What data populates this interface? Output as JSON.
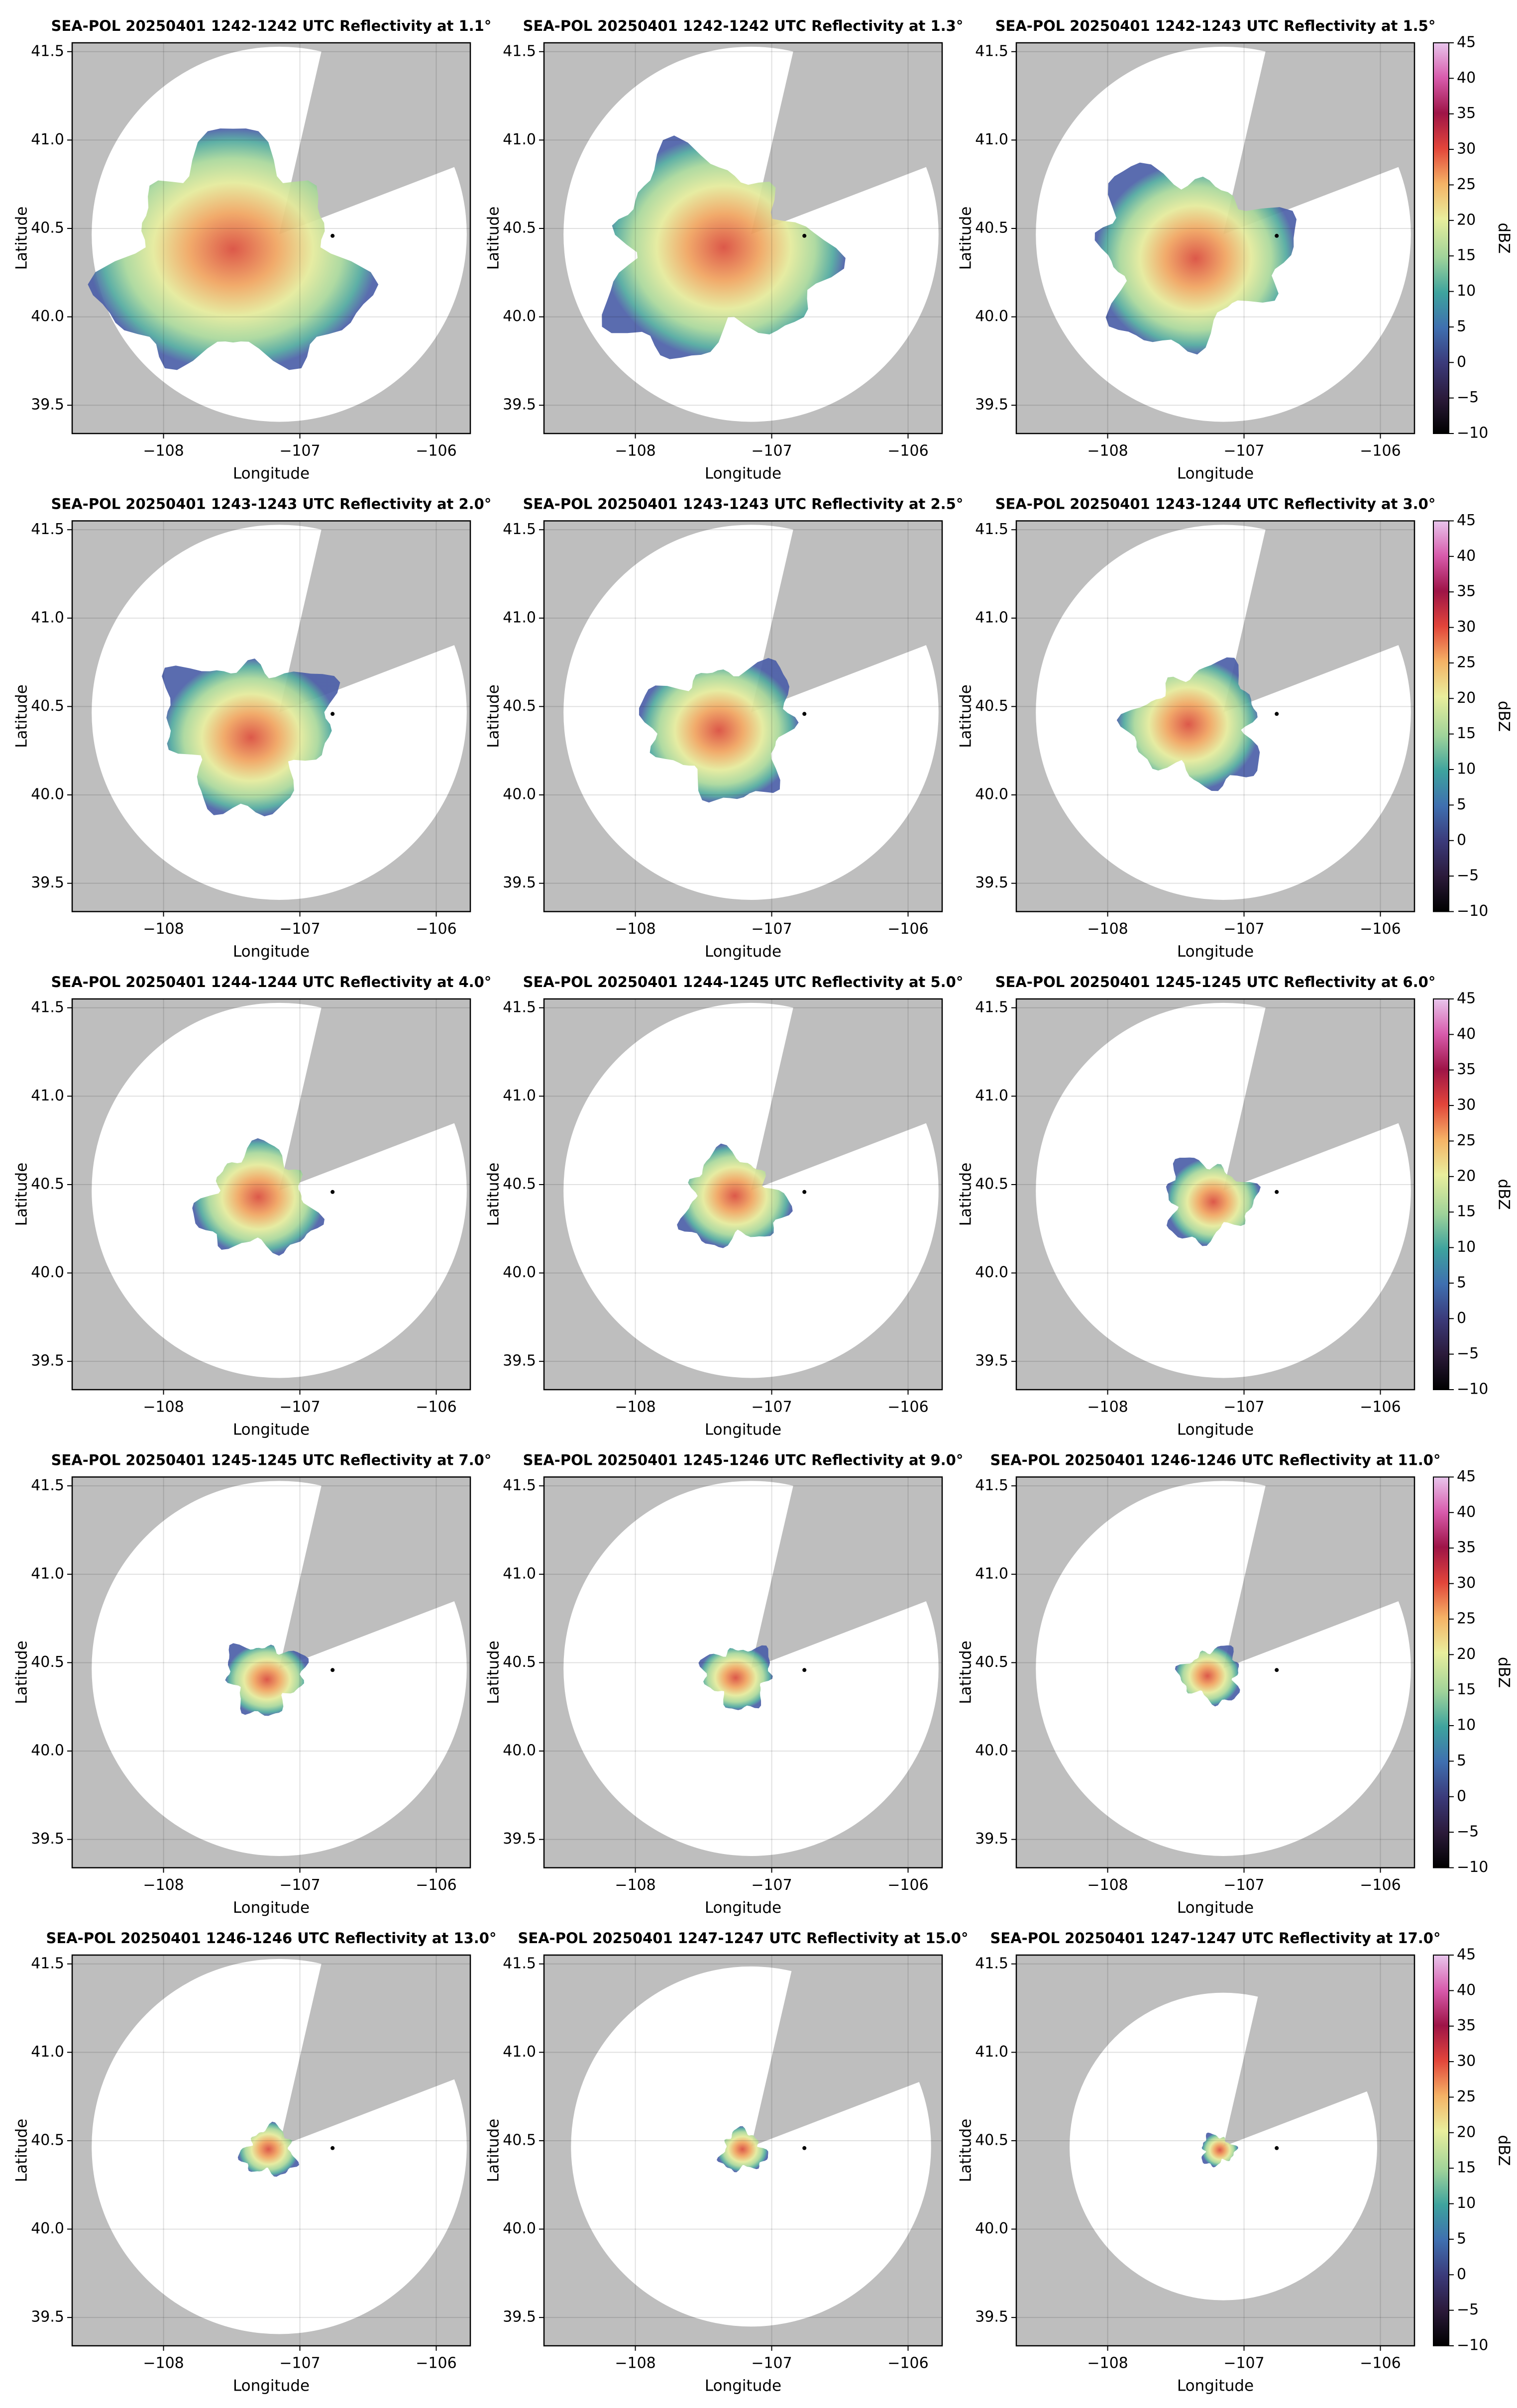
{
  "chart_data": [
    {
      "type": "radar",
      "title": "SEA-POL 20250401 1242-1242 UTC Reflectivity at 1.1°",
      "xlabel": "Longitude",
      "ylabel": "Latitude",
      "xlim": [
        -108.67,
        -105.75
      ],
      "ylim": [
        39.34,
        41.55
      ],
      "xticks": [
        {
          "value": -108,
          "label": "−108"
        },
        {
          "value": -107,
          "label": "−107"
        },
        {
          "value": -106,
          "label": "−106"
        }
      ],
      "yticks": [
        39.5,
        {
          "value": 40,
          "label": "40.0"
        },
        40.5,
        {
          "value": 41,
          "label": "41.0"
        },
        41.5
      ],
      "grid": true
    },
    {
      "type": "radar",
      "title": "SEA-POL 20250401 1242-1242 UTC Reflectivity at 1.3°",
      "xlabel": "Longitude",
      "ylabel": "Latitude",
      "xlim": [
        -108.67,
        -105.75
      ],
      "ylim": [
        39.34,
        41.55
      ],
      "xticks": [
        {
          "value": -108,
          "label": "−108"
        },
        {
          "value": -107,
          "label": "−107"
        },
        {
          "value": -106,
          "label": "−106"
        }
      ],
      "yticks": [
        39.5,
        {
          "value": 40,
          "label": "40.0"
        },
        40.5,
        {
          "value": 41,
          "label": "41.0"
        },
        41.5
      ],
      "grid": true
    },
    {
      "type": "radar",
      "title": "SEA-POL 20250401 1242-1243 UTC Reflectivity at 1.5°",
      "xlabel": "Longitude",
      "ylabel": "Latitude",
      "xlim": [
        -108.67,
        -105.75
      ],
      "ylim": [
        39.34,
        41.55
      ],
      "xticks": [
        {
          "value": -108,
          "label": "−108"
        },
        {
          "value": -107,
          "label": "−107"
        },
        {
          "value": -106,
          "label": "−106"
        }
      ],
      "yticks": [
        39.5,
        {
          "value": 40,
          "label": "40.0"
        },
        40.5,
        {
          "value": 41,
          "label": "41.0"
        },
        41.5
      ],
      "grid": true,
      "colorbar": {
        "label": "dBZ",
        "lim": [
          -10,
          45
        ],
        "ticks": [
          {
            "value": -10,
            "label": "−10"
          },
          {
            "value": -5,
            "label": "−5"
          },
          0,
          5,
          10,
          15,
          20,
          25,
          30,
          35,
          40,
          45
        ]
      }
    },
    {
      "type": "radar",
      "title": "SEA-POL 20250401 1243-1243 UTC Reflectivity at 2.0°",
      "xlabel": "Longitude",
      "ylabel": "Latitude",
      "xlim": [
        -108.67,
        -105.75
      ],
      "ylim": [
        39.34,
        41.55
      ],
      "xticks": [
        {
          "value": -108,
          "label": "−108"
        },
        {
          "value": -107,
          "label": "−107"
        },
        {
          "value": -106,
          "label": "−106"
        }
      ],
      "yticks": [
        39.5,
        {
          "value": 40,
          "label": "40.0"
        },
        40.5,
        {
          "value": 41,
          "label": "41.0"
        },
        41.5
      ],
      "grid": true
    },
    {
      "type": "radar",
      "title": "SEA-POL 20250401 1243-1243 UTC Reflectivity at 2.5°",
      "xlabel": "Longitude",
      "ylabel": "Latitude",
      "xlim": [
        -108.67,
        -105.75
      ],
      "ylim": [
        39.34,
        41.55
      ],
      "xticks": [
        {
          "value": -108,
          "label": "−108"
        },
        {
          "value": -107,
          "label": "−107"
        },
        {
          "value": -106,
          "label": "−106"
        }
      ],
      "yticks": [
        39.5,
        {
          "value": 40,
          "label": "40.0"
        },
        40.5,
        {
          "value": 41,
          "label": "41.0"
        },
        41.5
      ],
      "grid": true
    },
    {
      "type": "radar",
      "title": "SEA-POL 20250401 1243-1244 UTC Reflectivity at 3.0°",
      "xlabel": "Longitude",
      "ylabel": "Latitude",
      "xlim": [
        -108.67,
        -105.75
      ],
      "ylim": [
        39.34,
        41.55
      ],
      "xticks": [
        {
          "value": -108,
          "label": "−108"
        },
        {
          "value": -107,
          "label": "−107"
        },
        {
          "value": -106,
          "label": "−106"
        }
      ],
      "yticks": [
        39.5,
        {
          "value": 40,
          "label": "40.0"
        },
        40.5,
        {
          "value": 41,
          "label": "41.0"
        },
        41.5
      ],
      "grid": true,
      "colorbar": {
        "label": "dBZ",
        "lim": [
          -10,
          45
        ],
        "ticks": [
          {
            "value": -10,
            "label": "−10"
          },
          {
            "value": -5,
            "label": "−5"
          },
          0,
          5,
          10,
          15,
          20,
          25,
          30,
          35,
          40,
          45
        ]
      }
    },
    {
      "type": "radar",
      "title": "SEA-POL 20250401 1244-1244 UTC Reflectivity at 4.0°",
      "xlabel": "Longitude",
      "ylabel": "Latitude",
      "xlim": [
        -108.67,
        -105.75
      ],
      "ylim": [
        39.34,
        41.55
      ],
      "xticks": [
        {
          "value": -108,
          "label": "−108"
        },
        {
          "value": -107,
          "label": "−107"
        },
        {
          "value": -106,
          "label": "−106"
        }
      ],
      "yticks": [
        39.5,
        {
          "value": 40,
          "label": "40.0"
        },
        40.5,
        {
          "value": 41,
          "label": "41.0"
        },
        41.5
      ],
      "grid": true
    },
    {
      "type": "radar",
      "title": "SEA-POL 20250401 1244-1245 UTC Reflectivity at 5.0°",
      "xlabel": "Longitude",
      "ylabel": "Latitude",
      "xlim": [
        -108.67,
        -105.75
      ],
      "ylim": [
        39.34,
        41.55
      ],
      "xticks": [
        {
          "value": -108,
          "label": "−108"
        },
        {
          "value": -107,
          "label": "−107"
        },
        {
          "value": -106,
          "label": "−106"
        }
      ],
      "yticks": [
        39.5,
        {
          "value": 40,
          "label": "40.0"
        },
        40.5,
        {
          "value": 41,
          "label": "41.0"
        },
        41.5
      ],
      "grid": true
    },
    {
      "type": "radar",
      "title": "SEA-POL 20250401 1245-1245 UTC Reflectivity at 6.0°",
      "xlabel": "Longitude",
      "ylabel": "Latitude",
      "xlim": [
        -108.67,
        -105.75
      ],
      "ylim": [
        39.34,
        41.55
      ],
      "xticks": [
        {
          "value": -108,
          "label": "−108"
        },
        {
          "value": -107,
          "label": "−107"
        },
        {
          "value": -106,
          "label": "−106"
        }
      ],
      "yticks": [
        39.5,
        {
          "value": 40,
          "label": "40.0"
        },
        40.5,
        {
          "value": 41,
          "label": "41.0"
        },
        41.5
      ],
      "grid": true,
      "colorbar": {
        "label": "dBZ",
        "lim": [
          -10,
          45
        ],
        "ticks": [
          {
            "value": -10,
            "label": "−10"
          },
          {
            "value": -5,
            "label": "−5"
          },
          0,
          5,
          10,
          15,
          20,
          25,
          30,
          35,
          40,
          45
        ]
      }
    },
    {
      "type": "radar",
      "title": "SEA-POL 20250401 1245-1245 UTC Reflectivity at 7.0°",
      "xlabel": "Longitude",
      "ylabel": "Latitude",
      "xlim": [
        -108.67,
        -105.75
      ],
      "ylim": [
        39.34,
        41.55
      ],
      "xticks": [
        {
          "value": -108,
          "label": "−108"
        },
        {
          "value": -107,
          "label": "−107"
        },
        {
          "value": -106,
          "label": "−106"
        }
      ],
      "yticks": [
        39.5,
        {
          "value": 40,
          "label": "40.0"
        },
        40.5,
        {
          "value": 41,
          "label": "41.0"
        },
        41.5
      ],
      "grid": true
    },
    {
      "type": "radar",
      "title": "SEA-POL 20250401 1245-1246 UTC Reflectivity at 9.0°",
      "xlabel": "Longitude",
      "ylabel": "Latitude",
      "xlim": [
        -108.67,
        -105.75
      ],
      "ylim": [
        39.34,
        41.55
      ],
      "xticks": [
        {
          "value": -108,
          "label": "−108"
        },
        {
          "value": -107,
          "label": "−107"
        },
        {
          "value": -106,
          "label": "−106"
        }
      ],
      "yticks": [
        39.5,
        {
          "value": 40,
          "label": "40.0"
        },
        40.5,
        {
          "value": 41,
          "label": "41.0"
        },
        41.5
      ],
      "grid": true
    },
    {
      "type": "radar",
      "title": "SEA-POL 20250401 1246-1246 UTC Reflectivity at 11.0°",
      "xlabel": "Longitude",
      "ylabel": "Latitude",
      "xlim": [
        -108.67,
        -105.75
      ],
      "ylim": [
        39.34,
        41.55
      ],
      "xticks": [
        {
          "value": -108,
          "label": "−108"
        },
        {
          "value": -107,
          "label": "−107"
        },
        {
          "value": -106,
          "label": "−106"
        }
      ],
      "yticks": [
        39.5,
        {
          "value": 40,
          "label": "40.0"
        },
        40.5,
        {
          "value": 41,
          "label": "41.0"
        },
        41.5
      ],
      "grid": true,
      "colorbar": {
        "label": "dBZ",
        "lim": [
          -10,
          45
        ],
        "ticks": [
          {
            "value": -10,
            "label": "−10"
          },
          {
            "value": -5,
            "label": "−5"
          },
          0,
          5,
          10,
          15,
          20,
          25,
          30,
          35,
          40,
          45
        ]
      }
    },
    {
      "type": "radar",
      "title": "SEA-POL 20250401 1246-1246 UTC Reflectivity at 13.0°",
      "xlabel": "Longitude",
      "ylabel": "Latitude",
      "xlim": [
        -108.67,
        -105.75
      ],
      "ylim": [
        39.34,
        41.55
      ],
      "xticks": [
        {
          "value": -108,
          "label": "−108"
        },
        {
          "value": -107,
          "label": "−107"
        },
        {
          "value": -106,
          "label": "−106"
        }
      ],
      "yticks": [
        39.5,
        {
          "value": 40,
          "label": "40.0"
        },
        40.5,
        {
          "value": 41,
          "label": "41.0"
        },
        41.5
      ],
      "grid": true
    },
    {
      "type": "radar",
      "title": "SEA-POL 20250401 1247-1247 UTC Reflectivity at 15.0°",
      "xlabel": "Longitude",
      "ylabel": "Latitude",
      "xlim": [
        -108.67,
        -105.75
      ],
      "ylim": [
        39.34,
        41.55
      ],
      "xticks": [
        {
          "value": -108,
          "label": "−108"
        },
        {
          "value": -107,
          "label": "−107"
        },
        {
          "value": -106,
          "label": "−106"
        }
      ],
      "yticks": [
        39.5,
        {
          "value": 40,
          "label": "40.0"
        },
        40.5,
        {
          "value": 41,
          "label": "41.0"
        },
        41.5
      ],
      "grid": true
    },
    {
      "type": "radar",
      "title": "SEA-POL 20250401 1247-1247 UTC Reflectivity at 17.0°",
      "xlabel": "Longitude",
      "ylabel": "Latitude",
      "xlim": [
        -108.67,
        -105.75
      ],
      "ylim": [
        39.34,
        41.55
      ],
      "xticks": [
        {
          "value": -108,
          "label": "−108"
        },
        {
          "value": -107,
          "label": "−107"
        },
        {
          "value": -106,
          "label": "−106"
        }
      ],
      "yticks": [
        39.5,
        {
          "value": 40,
          "label": "40.0"
        },
        40.5,
        {
          "value": 41,
          "label": "41.0"
        },
        41.5
      ],
      "grid": true,
      "colorbar": {
        "label": "dBZ",
        "lim": [
          -10,
          45
        ],
        "ticks": [
          {
            "value": -10,
            "label": "−10"
          },
          {
            "value": -5,
            "label": "−5"
          },
          0,
          5,
          10,
          15,
          20,
          25,
          30,
          35,
          40,
          45
        ]
      }
    }
  ]
}
